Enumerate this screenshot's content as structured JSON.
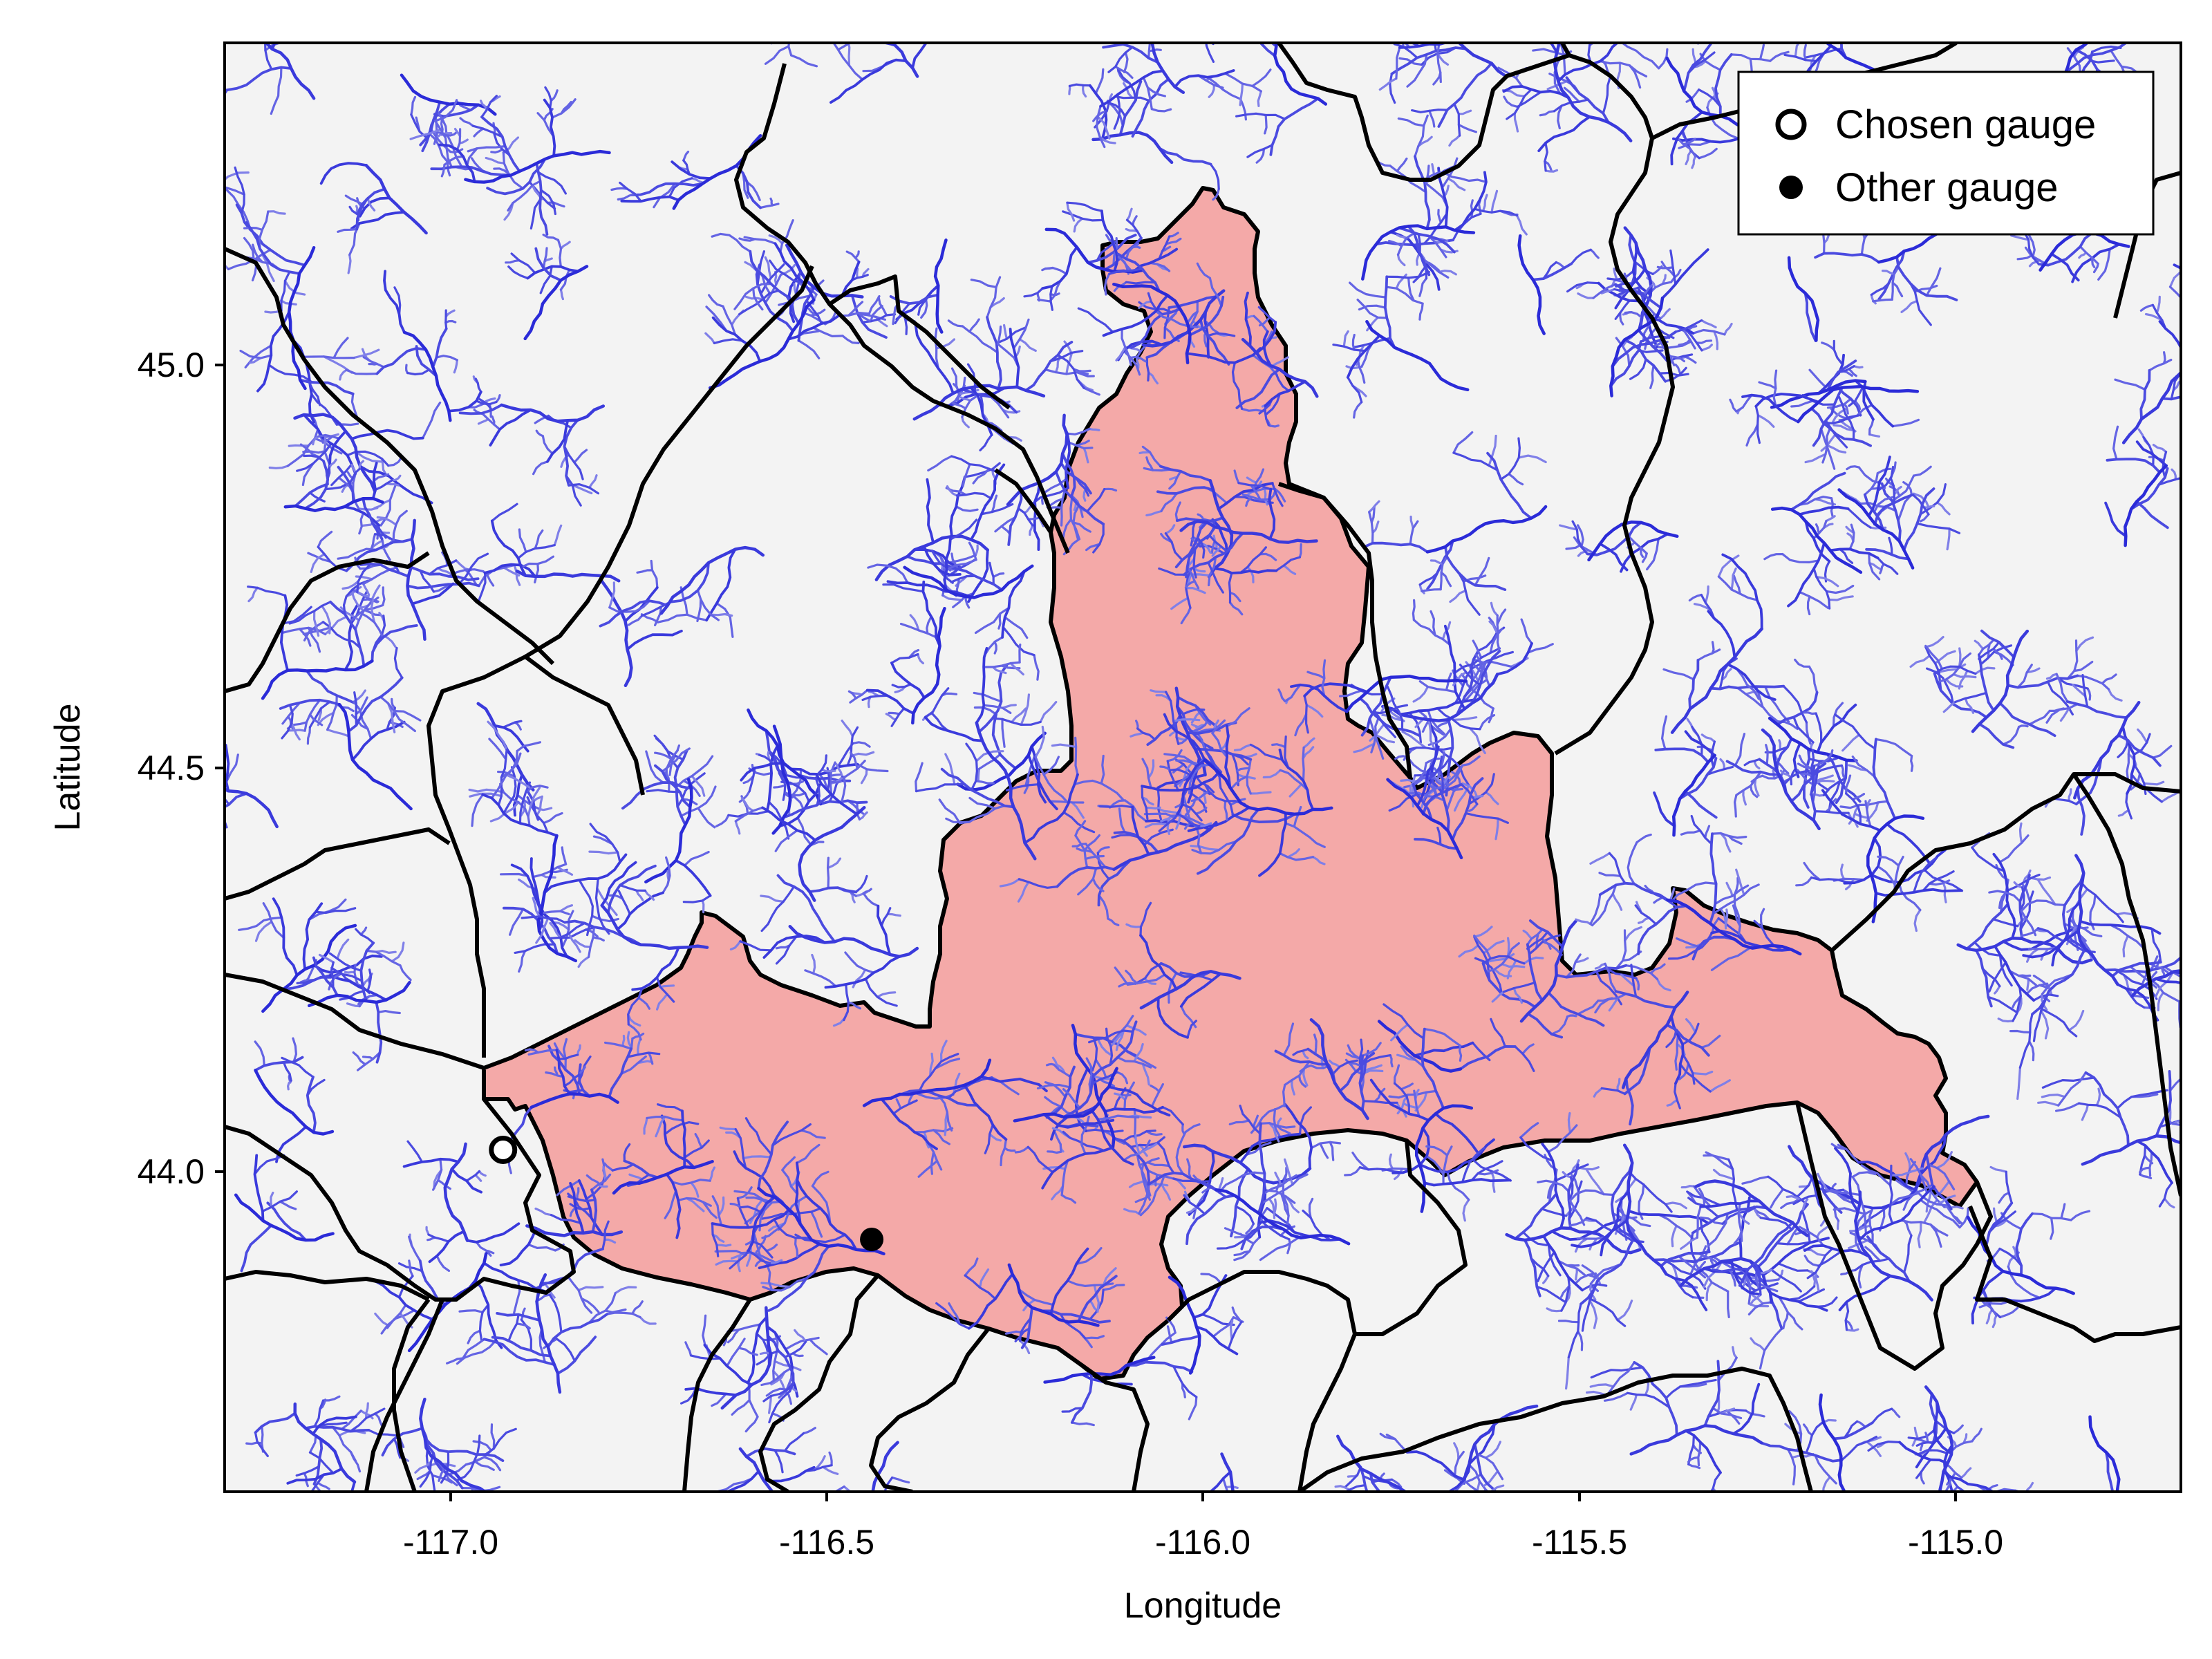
{
  "chart_data": {
    "type": "scatter",
    "title": "",
    "xlabel": "Longitude",
    "ylabel": "Latitude",
    "xlim": [
      -117.3,
      -114.7
    ],
    "ylim": [
      43.62,
      45.4
    ],
    "x_ticks": [
      "-117.0",
      "-116.5",
      "-116.0",
      "-115.5",
      "-115.0"
    ],
    "y_ticks": [
      "44.0",
      "44.5",
      "45.0"
    ],
    "grid": false,
    "legend_position": "top-right",
    "legend": [
      {
        "label": "Chosen gauge",
        "marker": "hollow-circle"
      },
      {
        "label": "Other gauge",
        "marker": "filled-circle"
      }
    ],
    "series": [
      {
        "name": "Chosen gauge",
        "points": [
          {
            "lon": -116.93,
            "lat": 44.04
          }
        ]
      },
      {
        "name": "Other gauge",
        "points": [
          {
            "lon": -116.44,
            "lat": 43.93
          }
        ]
      }
    ],
    "layers": {
      "highlighted_basin": {
        "fill": "#f4a9a8",
        "stroke": "#000000"
      },
      "catchment_boundaries": {
        "stroke": "#000000"
      },
      "rivers": {
        "stroke": "#2a2ad6"
      },
      "background": "#f3f3f3"
    }
  }
}
